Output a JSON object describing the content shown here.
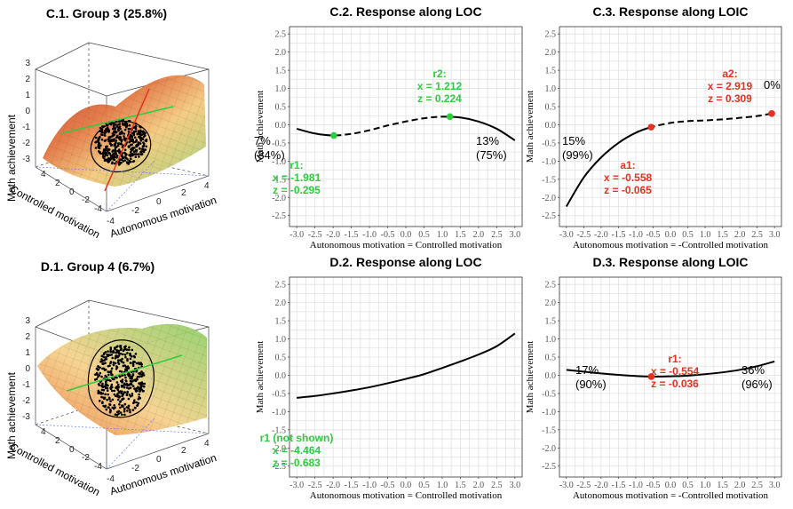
{
  "chart_data": [
    {
      "id": "C1",
      "type": "surface3d",
      "title": "C.1. Group 3  (25.8%)",
      "zlabel": "Math achievement",
      "xlabel": "Autonomous motivation",
      "ylabel": "Controlled motivation",
      "z_ticks": [
        "3",
        "2",
        "1",
        "0",
        "-1",
        "-2",
        "-3"
      ],
      "x_ticks": [
        "-4",
        "-2",
        "0",
        "2",
        "4"
      ],
      "y_ticks": [
        "4",
        "2",
        "0",
        "-2",
        "-4"
      ]
    },
    {
      "id": "C2",
      "type": "line",
      "title": "C.2. Response along LOC",
      "xlabel": "Autonomous motivation = Controlled motivation",
      "ylabel": "Math achievement",
      "xlim": [
        -3.2,
        3.2
      ],
      "ylim": [
        -2.8,
        2.7
      ],
      "x_ticks": [
        "-3.0",
        "-2.5",
        "-2.0",
        "-1.5",
        "-1.0",
        "-0.5",
        "0.0",
        "0.5",
        "1.0",
        "1.5",
        "2.0",
        "2.5",
        "3.0"
      ],
      "y_ticks": [
        "2.5",
        "2.0",
        "1.5",
        "1.0",
        "0.5",
        "0.0",
        "-0.5",
        "-1.0",
        "-1.5",
        "-2.0",
        "-2.5"
      ],
      "series": [
        {
          "x": [
            -3,
            -2.5,
            -2,
            -1.5,
            -1,
            -0.5,
            0,
            0.5,
            1,
            1.5,
            2,
            2.5,
            3
          ],
          "y": [
            -0.11,
            -0.24,
            -0.295,
            -0.25,
            -0.15,
            -0.02,
            0.09,
            0.18,
            0.222,
            0.2,
            0.09,
            -0.11,
            -0.43
          ]
        }
      ],
      "dash_range": [
        -1.981,
        1.212
      ],
      "points": [
        {
          "x": -1.981,
          "y": -0.295,
          "color": "#2ecc40"
        },
        {
          "x": 1.212,
          "y": 0.224,
          "color": "#2ecc40"
        }
      ],
      "annotations": [
        {
          "lines": [
            "7%",
            "(84%)"
          ],
          "color": "#000000",
          "bold": false
        },
        {
          "lines": [
            "r1:",
            "x = -1.981",
            "z = -0.295"
          ],
          "color": "#2ecc40",
          "bold": true
        },
        {
          "lines": [
            "r2:",
            "x = 1.212",
            "z = 0.224"
          ],
          "color": "#2ecc40",
          "bold": true
        },
        {
          "lines": [
            "13%",
            "(75%)"
          ],
          "color": "#000000",
          "bold": false
        }
      ]
    },
    {
      "id": "C3",
      "type": "line",
      "title": "C.3. Response along LOIC",
      "xlabel": "Autonomous motivation = -Controlled motivation",
      "ylabel": "Math achievement",
      "xlim": [
        -3.2,
        3.2
      ],
      "ylim": [
        -2.8,
        2.7
      ],
      "x_ticks": [
        "-3.0",
        "-2.5",
        "-2.0",
        "-1.5",
        "-1.0",
        "-0.5",
        "0.0",
        "0.5",
        "1.0",
        "1.5",
        "2.0",
        "2.5",
        "3.0"
      ],
      "y_ticks": [
        "2.5",
        "2.0",
        "1.5",
        "1.0",
        "0.5",
        "0.0",
        "-0.5",
        "-1.0",
        "-1.5",
        "-2.0",
        "-2.5"
      ],
      "series": [
        {
          "x": [
            -3,
            -2.5,
            -2,
            -1.5,
            -1,
            -0.558,
            0,
            0.5,
            1,
            1.5,
            2,
            2.5,
            2.919
          ],
          "y": [
            -2.25,
            -1.45,
            -0.9,
            -0.5,
            -0.22,
            -0.065,
            0.05,
            0.1,
            0.12,
            0.15,
            0.19,
            0.24,
            0.309
          ]
        }
      ],
      "dash_range": [
        -0.558,
        2.919
      ],
      "points": [
        {
          "x": -0.558,
          "y": -0.065,
          "color": "#e83020"
        },
        {
          "x": 2.919,
          "y": 0.309,
          "color": "#e83020"
        }
      ],
      "annotations": [
        {
          "lines": [
            "15%",
            "(99%)"
          ],
          "color": "#000000",
          "bold": false
        },
        {
          "lines": [
            "a1:",
            "x = -0.558",
            "z = -0.065"
          ],
          "color": "#e83020",
          "bold": true
        },
        {
          "lines": [
            "a2:",
            "x = 2.919",
            "z = 0.309"
          ],
          "color": "#e83020",
          "bold": true
        },
        {
          "lines": [
            "0%"
          ],
          "color": "#000000",
          "bold": false
        }
      ]
    },
    {
      "id": "D1",
      "type": "surface3d",
      "title": "D.1. Group 4 (6.7%)",
      "zlabel": "Math achievement",
      "xlabel": "Autonomous motivation",
      "ylabel": "Controlled motivation",
      "z_ticks": [
        "3",
        "2",
        "1",
        "0",
        "-1",
        "-2",
        "-3"
      ],
      "x_ticks": [
        "-4",
        "-2",
        "0",
        "2",
        "4"
      ],
      "y_ticks": [
        "4",
        "2",
        "0",
        "-2",
        "-4"
      ]
    },
    {
      "id": "D2",
      "type": "line",
      "title": "D.2. Response along LOC",
      "xlabel": "Autonomous motivation = Controlled motivation",
      "ylabel": "Math achievement",
      "xlim": [
        -3.2,
        3.2
      ],
      "ylim": [
        -2.8,
        2.7
      ],
      "x_ticks": [
        "-3.0",
        "-2.5",
        "-2.0",
        "-1.5",
        "-1.0",
        "-0.5",
        "0.0",
        "0.5",
        "1.0",
        "1.5",
        "2.0",
        "2.5",
        "3.0"
      ],
      "y_ticks": [
        "2.5",
        "2.0",
        "1.5",
        "1.0",
        "0.5",
        "0.0",
        "-0.5",
        "-1.0",
        "-1.5",
        "-2.0",
        "-2.5"
      ],
      "series": [
        {
          "x": [
            -3,
            -2.5,
            -2,
            -1.5,
            -1,
            -0.5,
            0,
            0.5,
            1,
            1.5,
            2,
            2.5,
            3
          ],
          "y": [
            -0.62,
            -0.57,
            -0.5,
            -0.42,
            -0.33,
            -0.22,
            -0.1,
            0.03,
            0.2,
            0.38,
            0.57,
            0.8,
            1.15
          ]
        }
      ],
      "points": [],
      "annotations": [
        {
          "lines": [
            "r1 (not shown)",
            "x = -4.464",
            "z = -0.683"
          ],
          "color": "#2ecc40",
          "bold": true
        }
      ]
    },
    {
      "id": "D3",
      "type": "line",
      "title": "D.3. Response along LOIC",
      "xlabel": "Autonomous motivation = -Controlled motivation",
      "ylabel": "Math achievement",
      "xlim": [
        -3.2,
        3.2
      ],
      "ylim": [
        -2.8,
        2.7
      ],
      "x_ticks": [
        "-3.0",
        "-2.5",
        "-2.0",
        "-1.5",
        "-1.0",
        "-0.5",
        "0.0",
        "0.5",
        "1.0",
        "1.5",
        "2.0",
        "2.5",
        "3.0"
      ],
      "y_ticks": [
        "2.5",
        "2.0",
        "1.5",
        "1.0",
        "0.5",
        "0.0",
        "-0.5",
        "-1.0",
        "-1.5",
        "-2.0",
        "-2.5"
      ],
      "series": [
        {
          "x": [
            -3,
            -2.5,
            -2,
            -1.5,
            -1,
            -0.554,
            0,
            0.5,
            1,
            1.5,
            2,
            2.5,
            3
          ],
          "y": [
            0.15,
            0.1,
            0.05,
            0.01,
            -0.02,
            -0.036,
            -0.03,
            -0.01,
            0.03,
            0.08,
            0.15,
            0.25,
            0.38
          ]
        }
      ],
      "points": [
        {
          "x": -0.554,
          "y": -0.036,
          "color": "#e83020"
        }
      ],
      "annotations": [
        {
          "lines": [
            "17%",
            "(90%)"
          ],
          "color": "#000000",
          "bold": false
        },
        {
          "lines": [
            "r1:",
            "x = -0.554",
            "z = -0.036"
          ],
          "color": "#e83020",
          "bold": true
        },
        {
          "lines": [
            "36%",
            "(96%)"
          ],
          "color": "#000000",
          "bold": false
        }
      ]
    }
  ]
}
